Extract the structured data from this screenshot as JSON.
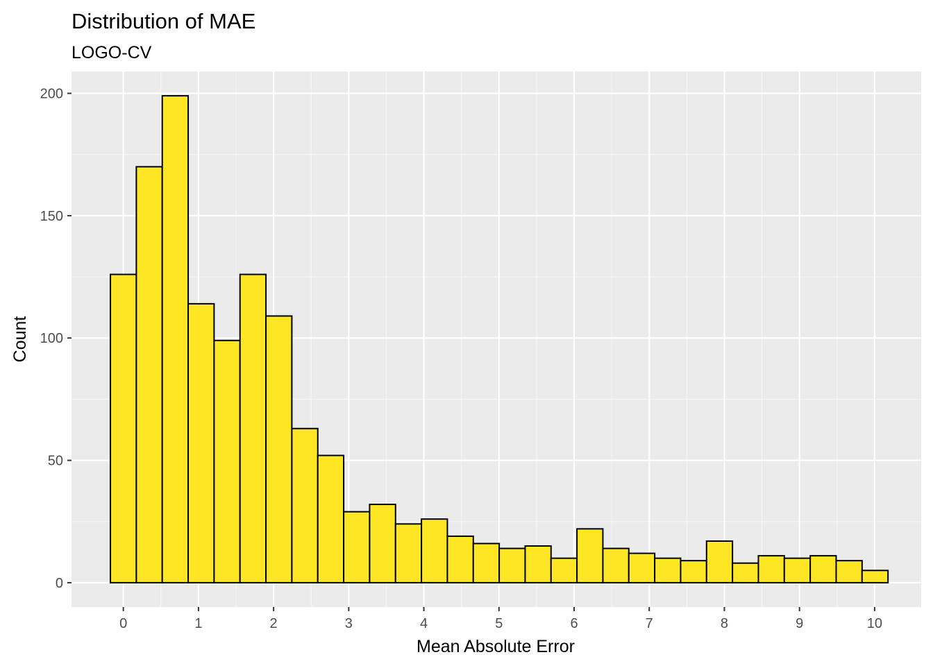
{
  "chart_data": {
    "type": "bar",
    "subtype": "histogram",
    "title": "Distribution of MAE",
    "subtitle": "LOGO-CV",
    "xlabel": "Mean Absolute Error",
    "ylabel": "Count",
    "bin_width": 0.345,
    "first_bin_start": -0.172,
    "counts": [
      126,
      170,
      199,
      114,
      99,
      126,
      109,
      63,
      52,
      29,
      32,
      24,
      26,
      19,
      16,
      14,
      15,
      10,
      22,
      14,
      12,
      10,
      9,
      17,
      8,
      11,
      10,
      11,
      9,
      5
    ],
    "xlim": [
      -0.69,
      10.62
    ],
    "ylim": [
      -9.95,
      208.95
    ],
    "x_ticks": [
      0,
      1,
      2,
      3,
      4,
      5,
      6,
      7,
      8,
      9,
      10
    ],
    "x_tick_labels": [
      "0",
      "1",
      "2",
      "3",
      "4",
      "5",
      "6",
      "7",
      "8",
      "9",
      "10"
    ],
    "y_ticks": [
      0,
      50,
      100,
      150,
      200
    ],
    "y_tick_labels": [
      "0",
      "50",
      "100",
      "150",
      "200"
    ],
    "grid": true,
    "legend": "none",
    "colors": {
      "bar_fill": "#FDE725",
      "bar_outline": "#000000",
      "panel_background": "#EBEBEB",
      "grid_major": "#FFFFFF",
      "grid_minor": "#F5F5F5",
      "tick_label": "#4D4D4D",
      "text": "#000000"
    }
  }
}
